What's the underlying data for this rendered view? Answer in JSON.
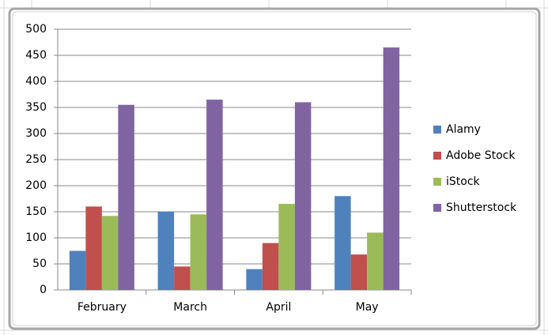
{
  "chart_data": {
    "type": "bar",
    "categories": [
      "February",
      "March",
      "April",
      "May"
    ],
    "series": [
      {
        "name": "Alamy",
        "color": "#4f81bd",
        "values": [
          75,
          150,
          40,
          180
        ]
      },
      {
        "name": "Adobe Stock",
        "color": "#c0504d",
        "values": [
          160,
          45,
          90,
          68
        ]
      },
      {
        "name": "iStock",
        "color": "#9bbb59",
        "values": [
          142,
          145,
          165,
          110
        ]
      },
      {
        "name": "Shutterstock",
        "color": "#8064a2",
        "values": [
          355,
          365,
          360,
          465
        ]
      }
    ],
    "ylim": [
      0,
      500
    ],
    "yticks": [
      0,
      50,
      100,
      150,
      200,
      250,
      300,
      350,
      400,
      450,
      500
    ],
    "grid": true,
    "legend": "right"
  }
}
